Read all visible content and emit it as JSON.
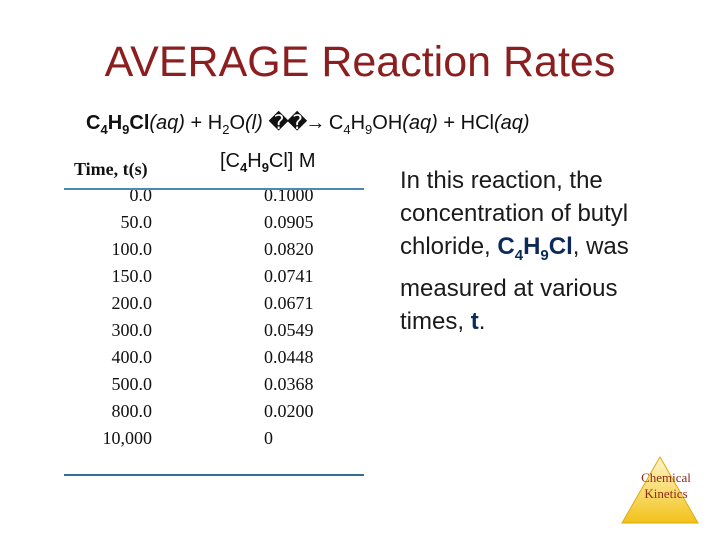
{
  "title": "AVERAGE Reaction Rates",
  "equation": {
    "reactant1": "C",
    "r1_sub1": "4",
    "r1_mid": "H",
    "r1_sub2": "9",
    "r1_end": "Cl",
    "r1_state": "(aq)",
    "plus1": " + H",
    "water_sub": "2",
    "water_end": "O",
    "water_state": "(l)",
    "arrow": "��→",
    "product1": " C",
    "p1_sub1": "4",
    "p1_mid": "H",
    "p1_sub2": "9",
    "p1_end": "OH",
    "p1_state": "(aq)",
    "plus2": " + HCl",
    "p2_state": "(aq)"
  },
  "table": {
    "time_header": "Time, t(s)",
    "conc_header_pre": "[C",
    "conc_sub1": "4",
    "conc_mid": "H",
    "conc_sub2": "9",
    "conc_post": "Cl] M",
    "rows": [
      {
        "time": "0.0",
        "conc": "0.1000"
      },
      {
        "time": "50.0",
        "conc": "0.0905"
      },
      {
        "time": "100.0",
        "conc": "0.0820"
      },
      {
        "time": "150.0",
        "conc": "0.0741"
      },
      {
        "time": "200.0",
        "conc": "0.0671"
      },
      {
        "time": "300.0",
        "conc": "0.0549"
      },
      {
        "time": "400.0",
        "conc": "0.0448"
      },
      {
        "time": "500.0",
        "conc": "0.0368"
      },
      {
        "time": "800.0",
        "conc": "0.0200"
      },
      {
        "time": "10,000",
        "conc": "0"
      }
    ]
  },
  "description": {
    "part1": "In this reaction, the concentration of butyl chloride, ",
    "formula_c": "C",
    "formula_sub1": "4",
    "formula_h": "H",
    "formula_sub2": "9",
    "formula_cl": "Cl",
    "part2": ", was measured at various times, ",
    "var_t": "t",
    "part3": "."
  },
  "logo": {
    "line1": "Chemical",
    "line2": "Kinetics",
    "color": "#f2c21b"
  },
  "colors": {
    "title": "#8b1f1f",
    "rule": "#2f6f8f",
    "emphasis": "#0b2a5a"
  }
}
